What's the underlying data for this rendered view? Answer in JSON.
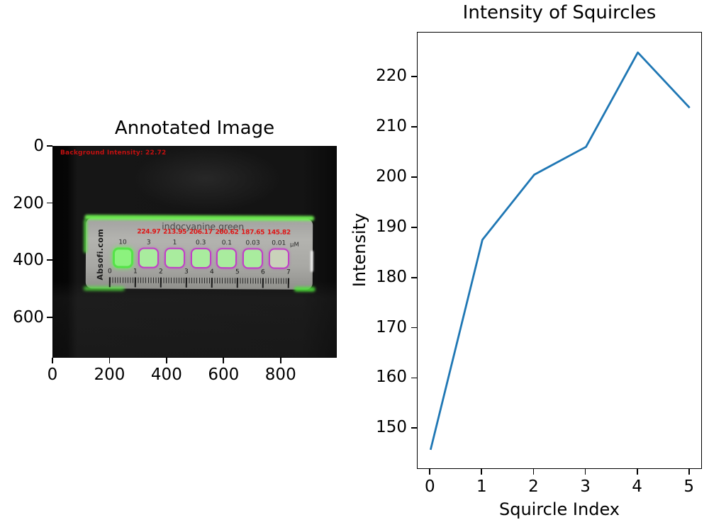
{
  "left_panel": {
    "photo": {
      "background_text": "Background Intensity: 22.72",
      "strip": {
        "brand": "Absofi.com",
        "strip_title": "indocyanine green",
        "unit": "μM",
        "squircles": [
          {
            "conc": "10",
            "value": "",
            "variant": "reference"
          },
          {
            "conc": "3",
            "value": "224.97",
            "variant": "normal"
          },
          {
            "conc": "1",
            "value": "213.95",
            "variant": "normal"
          },
          {
            "conc": "0.3",
            "value": "206.17",
            "variant": "normal"
          },
          {
            "conc": "0.1",
            "value": "200.62",
            "variant": "normal"
          },
          {
            "conc": "0.03",
            "value": "187.65",
            "variant": "normal"
          },
          {
            "conc": "0.01",
            "value": "145.82",
            "variant": "faded"
          }
        ],
        "ruler_numbers": [
          "0",
          "1",
          "2",
          "3",
          "4",
          "5",
          "6",
          "7"
        ]
      }
    }
  },
  "chart_data": [
    {
      "type": "image",
      "title": "Annotated Image",
      "xticks": [
        0,
        200,
        400,
        600,
        800
      ],
      "yticks": [
        0,
        200,
        400,
        600
      ],
      "xlim": [
        0,
        997
      ],
      "ylim": [
        742,
        0
      ],
      "annotations": {
        "background_intensity": 22.72,
        "squircle_intensities": [
          224.97,
          213.95,
          206.17,
          200.62,
          187.65,
          145.82
        ],
        "concentrations_uM": [
          10,
          3,
          1,
          0.3,
          0.1,
          0.03,
          0.01
        ]
      }
    },
    {
      "type": "line",
      "title": "Intensity of Squircles",
      "xlabel": "Squircle Index",
      "ylabel": "Intensity",
      "x": [
        0,
        1,
        2,
        3,
        4,
        5
      ],
      "y": [
        145.82,
        187.65,
        200.62,
        206.17,
        224.97,
        213.95
      ],
      "xticks": [
        0,
        1,
        2,
        3,
        4,
        5
      ],
      "yticks": [
        150,
        160,
        170,
        180,
        190,
        200,
        210,
        220
      ],
      "xlim": [
        -0.25,
        5.25
      ],
      "ylim": [
        141.86,
        228.93
      ],
      "line_color": "#1f77b4",
      "grid": false,
      "legend": null
    }
  ]
}
